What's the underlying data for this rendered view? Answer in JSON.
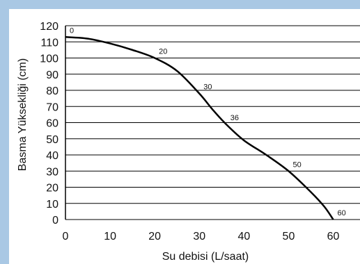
{
  "colors": {
    "frame": "#a9c8e4",
    "plot_bg": "#ffffff",
    "grid": "#000000",
    "curve": "#000000"
  },
  "chart_data": {
    "type": "line",
    "title": "",
    "xlabel": "Su debisi (L/saat)",
    "ylabel": "Basma Yüksekliği (cm)",
    "xlim": [
      0,
      66
    ],
    "ylim": [
      0,
      120
    ],
    "x_ticks": [
      0,
      10,
      20,
      30,
      40,
      50,
      60
    ],
    "y_ticks": [
      0,
      10,
      20,
      30,
      40,
      50,
      60,
      70,
      80,
      90,
      100,
      110,
      120
    ],
    "grid": "horizontal",
    "series": [
      {
        "x": [
          0,
          5,
          10,
          15,
          20,
          25,
          30,
          33,
          36,
          40,
          45,
          50,
          55,
          58,
          60
        ],
        "y": [
          113,
          112,
          109,
          105,
          100,
          92,
          78,
          68,
          59,
          49,
          40,
          30,
          17,
          8,
          0
        ]
      }
    ],
    "annotations": [
      {
        "text": "0",
        "x": 0,
        "y": 113
      },
      {
        "text": "20",
        "x": 20,
        "y": 100
      },
      {
        "text": "30",
        "x": 30,
        "y": 78
      },
      {
        "text": "36",
        "x": 36,
        "y": 59
      },
      {
        "text": "50",
        "x": 50,
        "y": 30
      },
      {
        "text": "60",
        "x": 60,
        "y": 0
      }
    ]
  }
}
